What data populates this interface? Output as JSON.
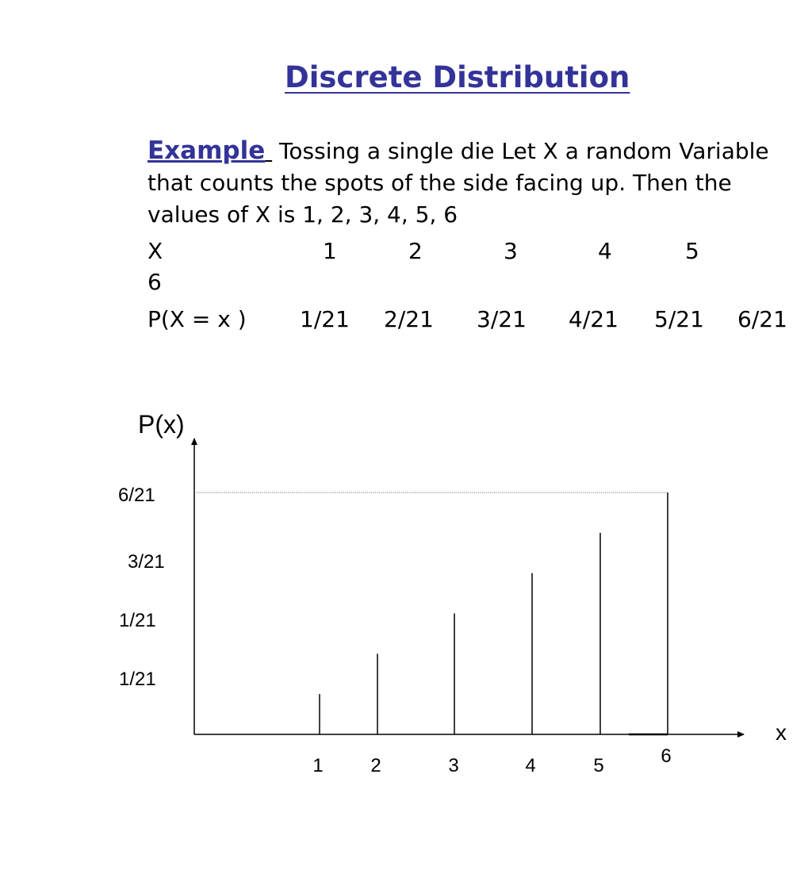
{
  "title": "Discrete Distribution",
  "example_label": "Example",
  "example_text": "Tossing a single die Let X a random Variable that counts the spots of the side facing up. Then the values of X is 1, 2, 3, 4, 5, 6",
  "table": {
    "x_header": "X",
    "x_values": [
      "1",
      "2",
      "3",
      "4",
      "5"
    ],
    "x_wrapped": "6",
    "p_header": "P(X = x )",
    "p_values": [
      "1/21",
      "2/21",
      "3/21",
      "4/21",
      "5/21",
      "6/21"
    ]
  },
  "chart_data": {
    "type": "bar",
    "ylabel": "P(x)",
    "xlabel": "x",
    "categories": [
      "1",
      "2",
      "3",
      "4",
      "5",
      "6"
    ],
    "values": [
      0.0476,
      0.0952,
      0.1429,
      0.1905,
      0.2381,
      0.2857
    ],
    "y_tick_labels": [
      "6/21",
      "3/21",
      "1/21",
      "1/21"
    ],
    "ylim": [
      0,
      0.2857
    ],
    "grid": false,
    "reference_line": "dotted line at 6/21"
  }
}
